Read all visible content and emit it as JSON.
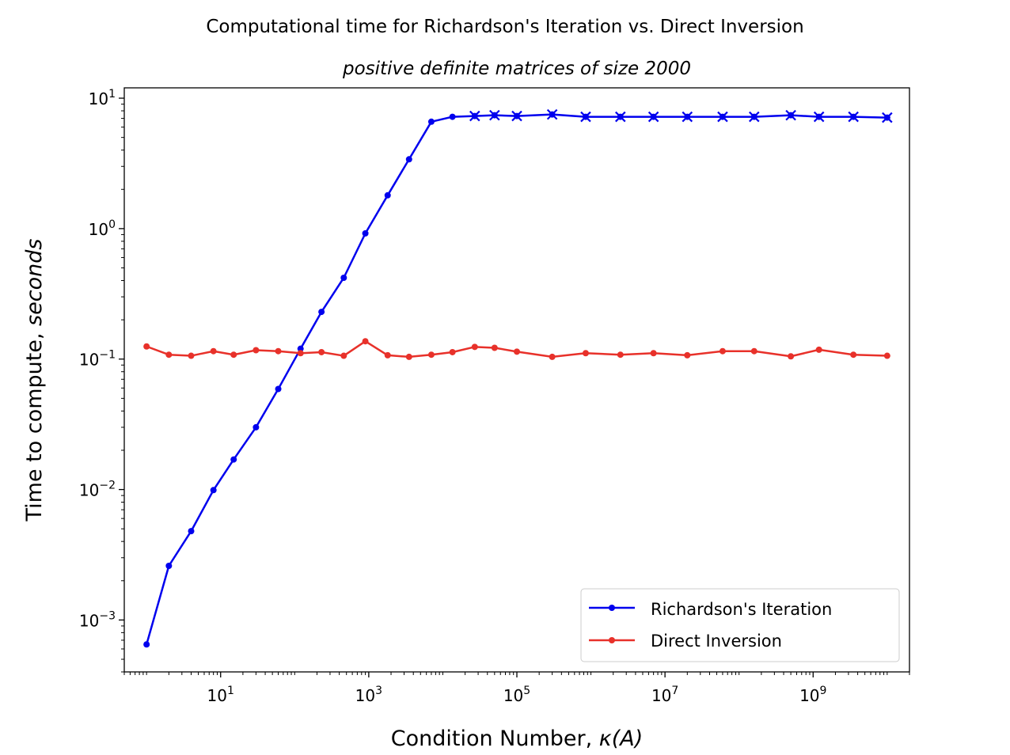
{
  "chart_data": {
    "type": "line",
    "title": "Computational time for Richardson's Iteration vs. Direct Inversion",
    "subtitle": "positive definite matrices of size 2000",
    "xlabel_prefix": "Condition Number, ",
    "xlabel_math": "κ(A)",
    "ylabel_prefix": "Time to compute, ",
    "ylabel_italic": "seconds",
    "x_scale": "log",
    "y_scale": "log",
    "xlim": [
      0.5,
      20000000000
    ],
    "ylim": [
      0.0004,
      12
    ],
    "x_ticks": [
      {
        "value": 10,
        "base": "10",
        "exp": "1"
      },
      {
        "value": 1000,
        "base": "10",
        "exp": "3"
      },
      {
        "value": 100000,
        "base": "10",
        "exp": "5"
      },
      {
        "value": 10000000,
        "base": "10",
        "exp": "7"
      },
      {
        "value": 1000000000,
        "base": "10",
        "exp": "9"
      }
    ],
    "y_ticks": [
      {
        "value": 0.001,
        "base": "10",
        "exp": "−3"
      },
      {
        "value": 0.01,
        "base": "10",
        "exp": "−2"
      },
      {
        "value": 0.1,
        "base": "10",
        "exp": "−1"
      },
      {
        "value": 1,
        "base": "10",
        "exp": "0"
      },
      {
        "value": 10,
        "base": "10",
        "exp": "1"
      }
    ],
    "grid": false,
    "legend_position": "lower-right",
    "series": [
      {
        "name": "Richardson's Iteration",
        "color": "#0000ee",
        "x": [
          1,
          2,
          4,
          8,
          15,
          30,
          60,
          120,
          230,
          460,
          900,
          1800,
          3500,
          7000,
          13500,
          27000,
          50000,
          100000,
          300000,
          850000,
          2500000,
          7000000,
          20000000,
          60000000,
          160000000,
          500000000,
          1200000000,
          3500000000,
          10000000000
        ],
        "y": [
          0.00065,
          0.0026,
          0.0048,
          0.0099,
          0.017,
          0.03,
          0.059,
          0.12,
          0.23,
          0.42,
          0.92,
          1.8,
          3.4,
          6.6,
          7.2,
          7.3,
          7.4,
          7.3,
          7.5,
          7.2,
          7.2,
          7.2,
          7.2,
          7.2,
          7.2,
          7.4,
          7.2,
          7.2,
          7.1
        ],
        "x_markers_from_index": 15
      },
      {
        "name": "Direct Inversion",
        "color": "#e8312a",
        "x": [
          1,
          2,
          4,
          8,
          15,
          30,
          60,
          120,
          230,
          460,
          900,
          1800,
          3500,
          7000,
          13500,
          27000,
          50000,
          100000,
          300000,
          850000,
          2500000,
          7000000,
          20000000,
          60000000,
          160000000,
          500000000,
          1200000000,
          3500000000,
          10000000000
        ],
        "y": [
          0.125,
          0.108,
          0.106,
          0.115,
          0.108,
          0.117,
          0.115,
          0.111,
          0.113,
          0.106,
          0.137,
          0.107,
          0.104,
          0.108,
          0.113,
          0.124,
          0.122,
          0.114,
          0.104,
          0.111,
          0.108,
          0.111,
          0.107,
          0.115,
          0.115,
          0.105,
          0.118,
          0.108,
          0.106
        ]
      }
    ]
  }
}
